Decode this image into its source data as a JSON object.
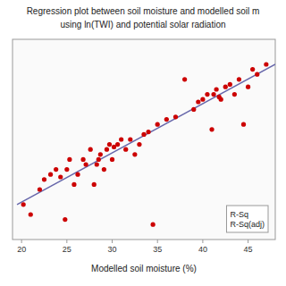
{
  "chart_data": {
    "type": "scatter",
    "title": "Regression plot between soil moisture and modelled soil m",
    "subtitle": "using ln(TWI) and potential solar radiation",
    "x_label": "Modelled soil moisture (%)",
    "xlim": [
      19,
      48
    ],
    "ylim": [
      14,
      54
    ],
    "xticks": [
      20,
      25,
      30,
      35,
      40,
      45
    ],
    "yticks": [],
    "tick_labels": "x",
    "annotations": [
      "R-Sq",
      "R-Sq(adj)"
    ],
    "series": [
      {
        "type": "scatter",
        "color": "#cc0000",
        "x": [
          20.2,
          21.0,
          22.0,
          22.5,
          23.2,
          23.8,
          24.3,
          24.8,
          25.0,
          25.3,
          25.8,
          26.2,
          26.8,
          27.1,
          27.6,
          28.0,
          28.3,
          28.5,
          28.7,
          29.1,
          29.4,
          29.7,
          30.0,
          30.2,
          30.6,
          31.0,
          31.5,
          32.0,
          32.5,
          33.0,
          33.5,
          34.0,
          34.5,
          35.0,
          36.0,
          37.0,
          38.0,
          39.0,
          39.5,
          40.0,
          40.5,
          41.0,
          41.2,
          41.5,
          41.8,
          42.0,
          42.5,
          43.0,
          43.5,
          44.0,
          44.5,
          45.0,
          45.5,
          46.0,
          47.0
        ],
        "values": [
          21.0,
          19.0,
          24.0,
          26.0,
          27.0,
          28.0,
          26.5,
          18.0,
          28.0,
          30.0,
          25.0,
          27.0,
          30.0,
          29.0,
          32.0,
          25.0,
          29.0,
          30.0,
          31.0,
          28.0,
          32.0,
          33.0,
          30.0,
          32.5,
          33.0,
          34.0,
          32.0,
          34.0,
          31.0,
          33.0,
          35.0,
          35.5,
          17.0,
          37.0,
          38.0,
          38.5,
          46.0,
          40.0,
          41.5,
          42.0,
          43.0,
          36.0,
          43.0,
          44.0,
          42.5,
          42.0,
          44.5,
          45.0,
          43.0,
          46.0,
          37.0,
          44.5,
          48.0,
          47.0,
          49.0
        ]
      },
      {
        "type": "line",
        "color": "#6666aa",
        "x": [
          19.5,
          48.0
        ],
        "values": [
          21.0,
          49.0
        ]
      }
    ]
  }
}
